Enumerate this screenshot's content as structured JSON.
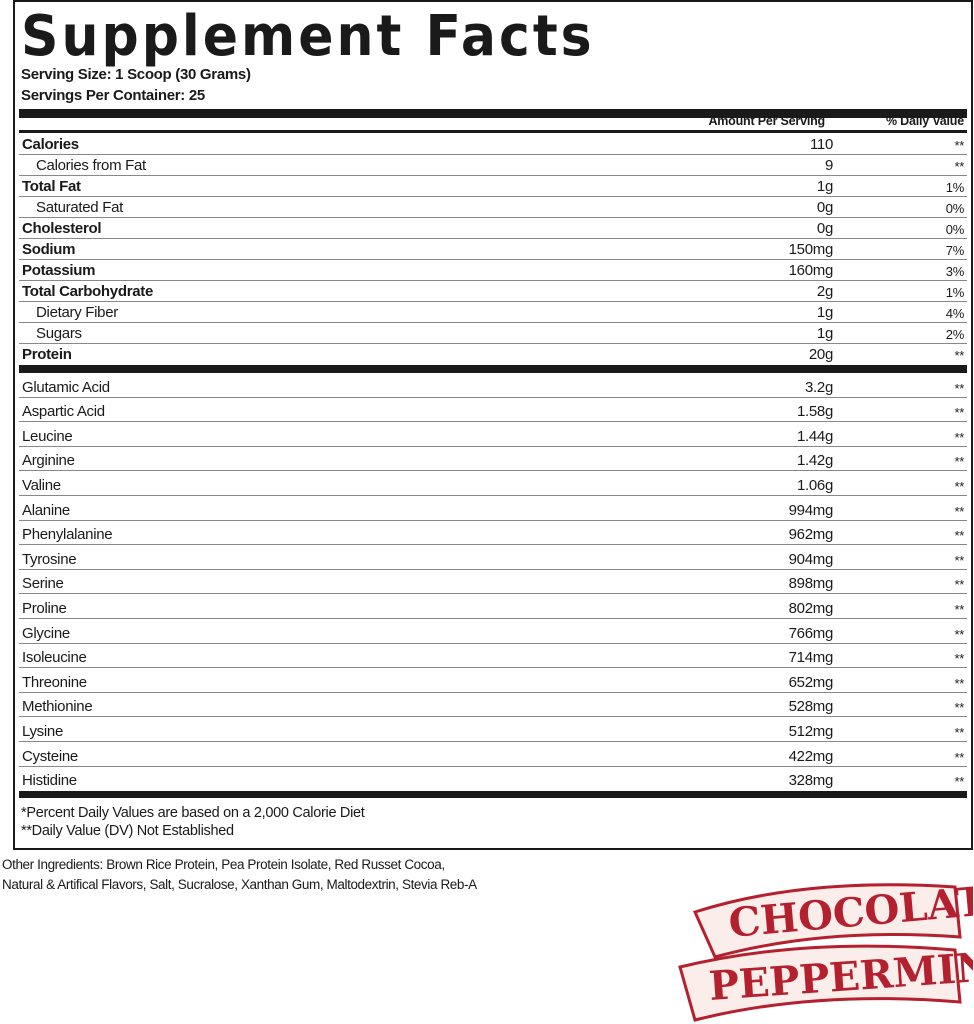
{
  "title": "Supplement Facts",
  "serving_size": "Serving Size: 1 Scoop (30 Grams)",
  "servings_per_container": "Servings Per Container: 25",
  "columns": {
    "amount": "Amount Per Serving",
    "dv": "% Daily Value"
  },
  "nutrients": [
    {
      "name": "Calories",
      "amount": "110",
      "dv": "**",
      "bold": true
    },
    {
      "name": "Calories from Fat",
      "amount": "9",
      "dv": "**",
      "indent": true
    },
    {
      "name": "Total Fat",
      "amount": "1g",
      "dv": "1%",
      "bold": true
    },
    {
      "name": "Saturated Fat",
      "amount": "0g",
      "dv": "0%",
      "indent": true
    },
    {
      "name": "Cholesterol",
      "amount": "0g",
      "dv": "0%",
      "bold": true
    },
    {
      "name": "Sodium",
      "amount": "150mg",
      "dv": "7%",
      "bold": true
    },
    {
      "name": "Potassium",
      "amount": "160mg",
      "dv": "3%",
      "bold": true
    },
    {
      "name": "Total Carbohydrate",
      "amount": "2g",
      "dv": "1%",
      "bold": true
    },
    {
      "name": "Dietary Fiber",
      "amount": "1g",
      "dv": "4%",
      "indent": true
    },
    {
      "name": "Sugars",
      "amount": "1g",
      "dv": "2%",
      "indent": true
    },
    {
      "name": "Protein",
      "amount": "20g",
      "dv": "**",
      "bold": true
    }
  ],
  "amino_acids": [
    {
      "name": "Glutamic Acid",
      "amount": "3.2g",
      "dv": "**"
    },
    {
      "name": "Aspartic Acid",
      "amount": "1.58g",
      "dv": "**"
    },
    {
      "name": "Leucine",
      "amount": "1.44g",
      "dv": "**"
    },
    {
      "name": "Arginine",
      "amount": "1.42g",
      "dv": "**"
    },
    {
      "name": "Valine",
      "amount": "1.06g",
      "dv": "**"
    },
    {
      "name": "Alanine",
      "amount": "994mg",
      "dv": "**"
    },
    {
      "name": "Phenylalanine",
      "amount": "962mg",
      "dv": "**"
    },
    {
      "name": "Tyrosine",
      "amount": "904mg",
      "dv": "**"
    },
    {
      "name": "Serine",
      "amount": "898mg",
      "dv": "**"
    },
    {
      "name": "Proline",
      "amount": "802mg",
      "dv": "**"
    },
    {
      "name": "Glycine",
      "amount": "766mg",
      "dv": "**"
    },
    {
      "name": "Isoleucine",
      "amount": "714mg",
      "dv": "**"
    },
    {
      "name": "Threonine",
      "amount": "652mg",
      "dv": "**"
    },
    {
      "name": "Methionine",
      "amount": "528mg",
      "dv": "**"
    },
    {
      "name": "Lysine",
      "amount": "512mg",
      "dv": "**"
    },
    {
      "name": "Cysteine",
      "amount": "422mg",
      "dv": "**"
    },
    {
      "name": "Histidine",
      "amount": "328mg",
      "dv": "**"
    }
  ],
  "footnotes": [
    "*Percent Daily Values are based on a 2,000 Calorie Diet",
    "**Daily Value (DV) Not Established"
  ],
  "other_ingredients": [
    "Other Ingredients: Brown Rice Protein, Pea Protein Isolate, Red Russet Cocoa,",
    "Natural & Artifical Flavors, Salt, Sucralose, Xanthan Gum, Maltodextrin, Stevia Reb-A"
  ],
  "flavor_logo": {
    "line1": "Chocolate",
    "line2": "Peppermint",
    "color": "#b5202e",
    "banner": "#fbeeea"
  }
}
